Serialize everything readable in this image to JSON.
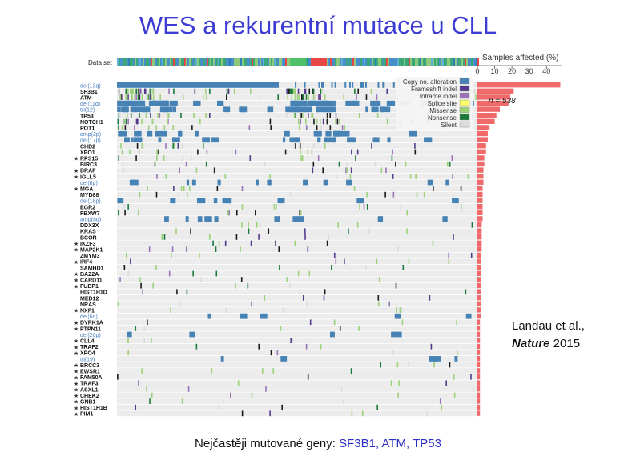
{
  "slide": {
    "title": "WES a rekurentní mutace u CLL",
    "caption_prefix": "Nejčastěji mutované geny: ",
    "caption_genes": "SF3B1, ATM, TP53",
    "citation_line1": "Landau et al.,",
    "citation_journal": "Nature",
    "citation_year": " 2015"
  },
  "chart_data": {
    "type": "heatmap",
    "top_row_label": "Data set",
    "bar_title": "Samples affected (%)",
    "bar_ticks": [
      0,
      10,
      20,
      30,
      40
    ],
    "xlim": [
      0,
      50
    ],
    "n_label": "n = 538",
    "legend": [
      {
        "label": "Copy no. alteration",
        "color": "#4682b4"
      },
      {
        "label": "Frameshift indel",
        "color": "#553a8c"
      },
      {
        "label": "Inframe indel",
        "color": "#9a73b8"
      },
      {
        "label": "Splice site",
        "color": "#ffff66"
      },
      {
        "label": "Missense",
        "color": "#9cd17a"
      },
      {
        "label": "Nonsense",
        "color": "#1a7a3a"
      },
      {
        "label": "Silent",
        "color": "#dcdcdc"
      }
    ],
    "rows": [
      {
        "label": "del(13q)",
        "star": false,
        "cnv": true,
        "pct": 48
      },
      {
        "label": "SF3B1",
        "star": false,
        "cnv": false,
        "pct": 21
      },
      {
        "label": "ATM",
        "star": false,
        "cnv": false,
        "pct": 19
      },
      {
        "label": "del(11q)",
        "star": false,
        "cnv": true,
        "pct": 18
      },
      {
        "label": "tri(12)",
        "star": false,
        "cnv": true,
        "pct": 13
      },
      {
        "label": "TP53",
        "star": false,
        "cnv": false,
        "pct": 11
      },
      {
        "label": "NOTCH1",
        "star": false,
        "cnv": false,
        "pct": 10
      },
      {
        "label": "POT1",
        "star": false,
        "cnv": false,
        "pct": 7
      },
      {
        "label": "amp(2p)",
        "star": false,
        "cnv": true,
        "pct": 6
      },
      {
        "label": "del(17p)",
        "star": false,
        "cnv": true,
        "pct": 6
      },
      {
        "label": "CHD2",
        "star": false,
        "cnv": false,
        "pct": 5
      },
      {
        "label": "XPO1",
        "star": false,
        "cnv": false,
        "pct": 5
      },
      {
        "label": "RPS15",
        "star": true,
        "cnv": false,
        "pct": 4
      },
      {
        "label": "BIRC3",
        "star": false,
        "cnv": false,
        "pct": 4
      },
      {
        "label": "BRAF",
        "star": true,
        "cnv": false,
        "pct": 3.5
      },
      {
        "label": "IGLL5",
        "star": true,
        "cnv": false,
        "pct": 3.5
      },
      {
        "label": "del(8p)",
        "star": false,
        "cnv": true,
        "pct": 3.5
      },
      {
        "label": "MGA",
        "star": true,
        "cnv": false,
        "pct": 3
      },
      {
        "label": "MYD88",
        "star": false,
        "cnv": false,
        "pct": 3
      },
      {
        "label": "del(18p)",
        "star": false,
        "cnv": true,
        "pct": 3
      },
      {
        "label": "EGR2",
        "star": false,
        "cnv": false,
        "pct": 3
      },
      {
        "label": "FBXW7",
        "star": false,
        "cnv": false,
        "pct": 3
      },
      {
        "label": "amp(8q)",
        "star": false,
        "cnv": true,
        "pct": 3
      },
      {
        "label": "DDX3X",
        "star": false,
        "cnv": false,
        "pct": 2.5
      },
      {
        "label": "KRAS",
        "star": false,
        "cnv": false,
        "pct": 2.5
      },
      {
        "label": "BCOR",
        "star": false,
        "cnv": false,
        "pct": 2.5
      },
      {
        "label": "IKZF3",
        "star": true,
        "cnv": false,
        "pct": 2.5
      },
      {
        "label": "MAP2K1",
        "star": true,
        "cnv": false,
        "pct": 2.5
      },
      {
        "label": "ZMYM3",
        "star": false,
        "cnv": false,
        "pct": 2
      },
      {
        "label": "IRF4",
        "star": true,
        "cnv": false,
        "pct": 2
      },
      {
        "label": "SAMHD1",
        "star": false,
        "cnv": false,
        "pct": 2
      },
      {
        "label": "BAZ2A",
        "star": true,
        "cnv": false,
        "pct": 2
      },
      {
        "label": "CARD11",
        "star": true,
        "cnv": false,
        "pct": 2
      },
      {
        "label": "FUBP1",
        "star": true,
        "cnv": false,
        "pct": 2
      },
      {
        "label": "HIST1H1D",
        "star": false,
        "cnv": false,
        "pct": 2
      },
      {
        "label": "MED12",
        "star": false,
        "cnv": false,
        "pct": 2
      },
      {
        "label": "NRAS",
        "star": false,
        "cnv": false,
        "pct": 2
      },
      {
        "label": "NXF1",
        "star": true,
        "cnv": false,
        "pct": 2
      },
      {
        "label": "del(6q)",
        "star": false,
        "cnv": true,
        "pct": 2
      },
      {
        "label": "DYRK1A",
        "star": true,
        "cnv": false,
        "pct": 1.5
      },
      {
        "label": "PTPN11",
        "star": true,
        "cnv": false,
        "pct": 1.5
      },
      {
        "label": "del(20p)",
        "star": false,
        "cnv": true,
        "pct": 1.5
      },
      {
        "label": "CLL4",
        "star": true,
        "cnv": false,
        "pct": 1.5
      },
      {
        "label": "TRAF2",
        "star": true,
        "cnv": false,
        "pct": 1.5
      },
      {
        "label": "XPO4",
        "star": true,
        "cnv": false,
        "pct": 1.5
      },
      {
        "label": "tri(19)",
        "star": false,
        "cnv": true,
        "pct": 1.5
      },
      {
        "label": "BRCC3",
        "star": true,
        "cnv": false,
        "pct": 1.5
      },
      {
        "label": "EWSR1",
        "star": true,
        "cnv": false,
        "pct": 1.5
      },
      {
        "label": "FAM50A",
        "star": true,
        "cnv": false,
        "pct": 1.5
      },
      {
        "label": "TRAF3",
        "star": true,
        "cnv": false,
        "pct": 1.5
      },
      {
        "label": "ASXL1",
        "star": true,
        "cnv": false,
        "pct": 1.5
      },
      {
        "label": "CHEK2",
        "star": true,
        "cnv": false,
        "pct": 1.5
      },
      {
        "label": "GNB1",
        "star": true,
        "cnv": false,
        "pct": 1.5
      },
      {
        "label": "HIST1H1B",
        "star": true,
        "cnv": false,
        "pct": 1.5
      },
      {
        "label": "PIM1",
        "star": true,
        "cnv": false,
        "pct": 1.5
      }
    ]
  }
}
